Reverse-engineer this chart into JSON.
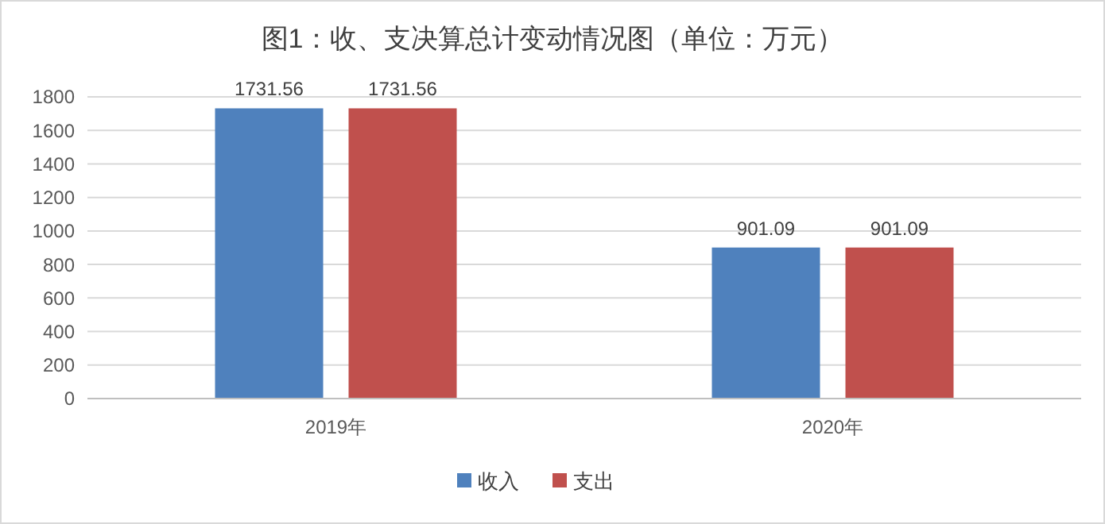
{
  "chart_data": {
    "type": "bar",
    "title": "图1：收、支决算总计变动情况图（单位：万元）",
    "categories": [
      "2019年",
      "2020年"
    ],
    "series": [
      {
        "name": "收入",
        "color": "#4f81bd",
        "values": [
          1731.56,
          901.09
        ]
      },
      {
        "name": "支出",
        "color": "#c0504d",
        "values": [
          1731.56,
          901.09
        ]
      }
    ],
    "ylim": [
      0,
      1800
    ],
    "yticks": [
      0,
      200,
      400,
      600,
      800,
      1000,
      1200,
      1400,
      1600,
      1800
    ],
    "grid": "y",
    "legend": "bottom",
    "data_labels": true
  }
}
